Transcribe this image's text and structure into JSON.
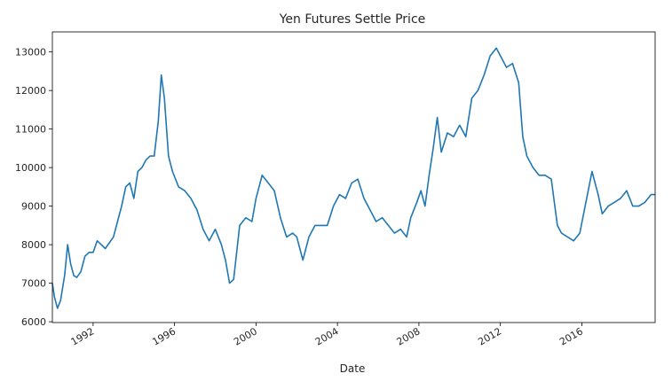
{
  "chart_data": {
    "type": "line",
    "title": "Yen Futures Settle Price",
    "xlabel": "Date",
    "ylabel": "",
    "x_range": [
      1990.0,
      2019.6
    ],
    "ylim": [
      5980,
      13520
    ],
    "x_ticks": [
      {
        "year": 1992,
        "label": "1992"
      },
      {
        "year": 1996,
        "label": "1996"
      },
      {
        "year": 2000,
        "label": "2000"
      },
      {
        "year": 2004,
        "label": "2004"
      },
      {
        "year": 2008,
        "label": "2008"
      },
      {
        "year": 2012,
        "label": "2012"
      },
      {
        "year": 2016,
        "label": "2016"
      }
    ],
    "y_ticks": [
      {
        "value": 6000,
        "label": "6000"
      },
      {
        "value": 7000,
        "label": "7000"
      },
      {
        "value": 8000,
        "label": "8000"
      },
      {
        "value": 9000,
        "label": "9000"
      },
      {
        "value": 10000,
        "label": "10000"
      },
      {
        "value": 11000,
        "label": "11000"
      },
      {
        "value": 12000,
        "label": "12000"
      },
      {
        "value": 13000,
        "label": "13000"
      }
    ],
    "grid": false,
    "legend": "none",
    "series": [
      {
        "color": "#1f77b4",
        "x": [
          1990.0,
          1990.1,
          1990.25,
          1990.4,
          1990.6,
          1990.75,
          1990.9,
          1991.05,
          1991.2,
          1991.4,
          1991.6,
          1991.8,
          1992.0,
          1992.2,
          1992.4,
          1992.6,
          1992.8,
          1993.0,
          1993.2,
          1993.4,
          1993.6,
          1993.8,
          1994.0,
          1994.2,
          1994.4,
          1994.6,
          1994.8,
          1995.0,
          1995.2,
          1995.35,
          1995.5,
          1995.7,
          1995.9,
          1996.2,
          1996.5,
          1996.8,
          1997.1,
          1997.4,
          1997.7,
          1998.0,
          1998.3,
          1998.5,
          1998.7,
          1998.9,
          1999.2,
          1999.5,
          1999.8,
          2000.0,
          2000.3,
          2000.6,
          2000.9,
          2001.2,
          2001.5,
          2001.8,
          2002.0,
          2002.3,
          2002.6,
          2002.9,
          2003.2,
          2003.5,
          2003.8,
          2004.1,
          2004.4,
          2004.7,
          2005.0,
          2005.3,
          2005.6,
          2005.9,
          2006.2,
          2006.5,
          2006.8,
          2007.1,
          2007.4,
          2007.6,
          2007.9,
          2008.1,
          2008.3,
          2008.5,
          2008.7,
          2008.9,
          2009.1,
          2009.4,
          2009.7,
          2010.0,
          2010.3,
          2010.6,
          2010.9,
          2011.2,
          2011.5,
          2011.8,
          2012.0,
          2012.3,
          2012.6,
          2012.9,
          2013.1,
          2013.3,
          2013.6,
          2013.9,
          2014.2,
          2014.5,
          2014.8,
          2015.0,
          2015.3,
          2015.6,
          2015.9,
          2016.2,
          2016.5,
          2016.8,
          2017.0,
          2017.3,
          2017.6,
          2017.9,
          2018.2,
          2018.5,
          2018.8,
          2019.1,
          2019.4,
          2019.6
        ],
        "y": [
          7000,
          6650,
          6350,
          6550,
          7200,
          8000,
          7500,
          7200,
          7150,
          7300,
          7700,
          7800,
          7800,
          8100,
          8000,
          7900,
          8050,
          8200,
          8600,
          9000,
          9500,
          9600,
          9200,
          9900,
          10000,
          10200,
          10300,
          10300,
          11200,
          12400,
          11800,
          10300,
          9900,
          9500,
          9400,
          9200,
          8900,
          8400,
          8100,
          8400,
          8000,
          7600,
          7000,
          7100,
          8500,
          8700,
          8600,
          9200,
          9800,
          9600,
          9400,
          8700,
          8200,
          8300,
          8200,
          7600,
          8200,
          8500,
          8500,
          8500,
          9000,
          9300,
          9200,
          9600,
          9700,
          9200,
          8900,
          8600,
          8700,
          8500,
          8300,
          8400,
          8200,
          8700,
          9100,
          9400,
          9000,
          9800,
          10500,
          11300,
          10400,
          10900,
          10800,
          11100,
          10800,
          11800,
          12000,
          12400,
          12900,
          13100,
          12900,
          12600,
          12700,
          12200,
          10800,
          10300,
          10000,
          9800,
          9800,
          9700,
          8500,
          8300,
          8200,
          8100,
          8300,
          9100,
          9900,
          9300,
          8800,
          9000,
          9100,
          9200,
          9400,
          9000,
          9000,
          9100,
          9300,
          9300
        ]
      }
    ]
  }
}
